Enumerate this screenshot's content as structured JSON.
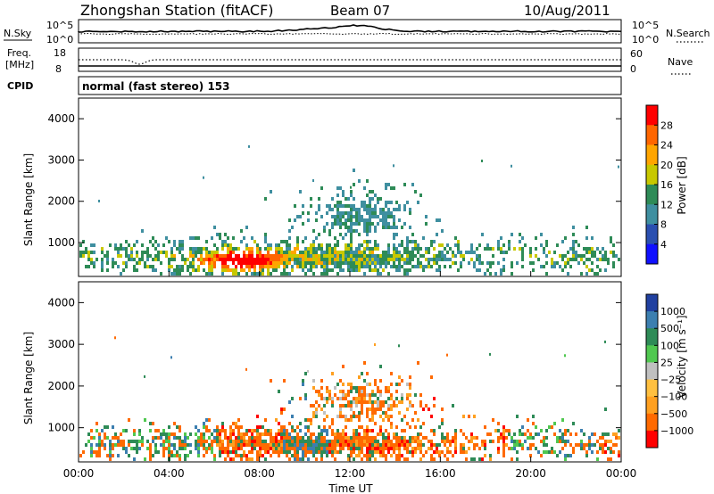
{
  "header": {
    "station": "Zhongshan Station (fitACF)",
    "beam": "Beam 07",
    "date": "10/Aug/2011"
  },
  "noise_panel": {
    "left_label": "N.Sky",
    "left_ticks": [
      "10^5",
      "10^0"
    ],
    "right_label": "N.Search",
    "right_ticks": [
      "10^5",
      "10^0"
    ]
  },
  "freq_panel": {
    "left_label_1": "Freq.",
    "left_label_2": "[MHz]",
    "left_ticks": [
      "18",
      "8"
    ],
    "right_label": "Nave",
    "right_ticks": [
      "60",
      "0"
    ]
  },
  "cpid_panel": {
    "label": "CPID",
    "text": "normal (fast stereo) 153"
  },
  "colors": {
    "power_scale": [
      "#1010ff",
      "#2a4fb0",
      "#3f8fa0",
      "#2e8b57",
      "#c8c800",
      "#ffa500",
      "#ff6600",
      "#ff0000"
    ],
    "velocity_scale": [
      "#ff0000",
      "#ff6a00",
      "#ffa020",
      "#ffc040",
      "#c0c0c0",
      "#50c850",
      "#2e8b57",
      "#3c7fb0",
      "#2040a0"
    ]
  },
  "chart_data": [
    {
      "type": "heatmap",
      "title": "Power",
      "ylabel": "Slant Range [km]",
      "ylim": [
        180,
        4500
      ],
      "yticks": [
        "1000",
        "2000",
        "3000",
        "4000"
      ],
      "xlim": [
        "00:00",
        "24:00"
      ],
      "colorbar": {
        "label": "Power [dB]",
        "range": [
          0,
          32
        ],
        "ticks": [
          "28",
          "24",
          "20",
          "16",
          "12",
          "8",
          "4"
        ]
      }
    },
    {
      "type": "heatmap",
      "title": "Velocity",
      "ylabel": "Slant Range [km]",
      "ylim": [
        180,
        4500
      ],
      "yticks": [
        "1000",
        "2000",
        "3000",
        "4000"
      ],
      "xlabel": "Time UT",
      "xticks": [
        "00:00",
        "04:00",
        "08:00",
        "12:00",
        "16:00",
        "20:00",
        "00:00"
      ],
      "colorbar": {
        "label": "Velocity [m s⁻¹]",
        "ticks": [
          "1000",
          "500",
          "100",
          "25",
          "−25",
          "−100",
          "−500",
          "−1000"
        ]
      }
    }
  ]
}
